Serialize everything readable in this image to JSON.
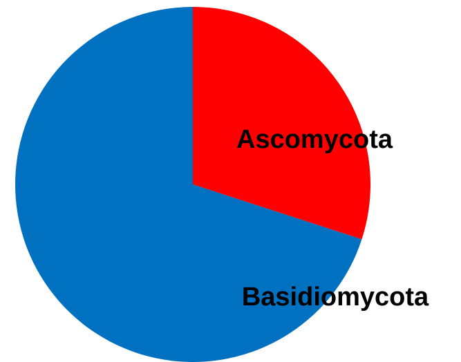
{
  "chart_data": {
    "type": "pie",
    "categories": [
      "Ascomycota",
      "Basidiomycota"
    ],
    "values": [
      30,
      70
    ],
    "colors": [
      "#ff0000",
      "#0070c0"
    ],
    "start_angle": 0,
    "direction": "clockwise"
  }
}
